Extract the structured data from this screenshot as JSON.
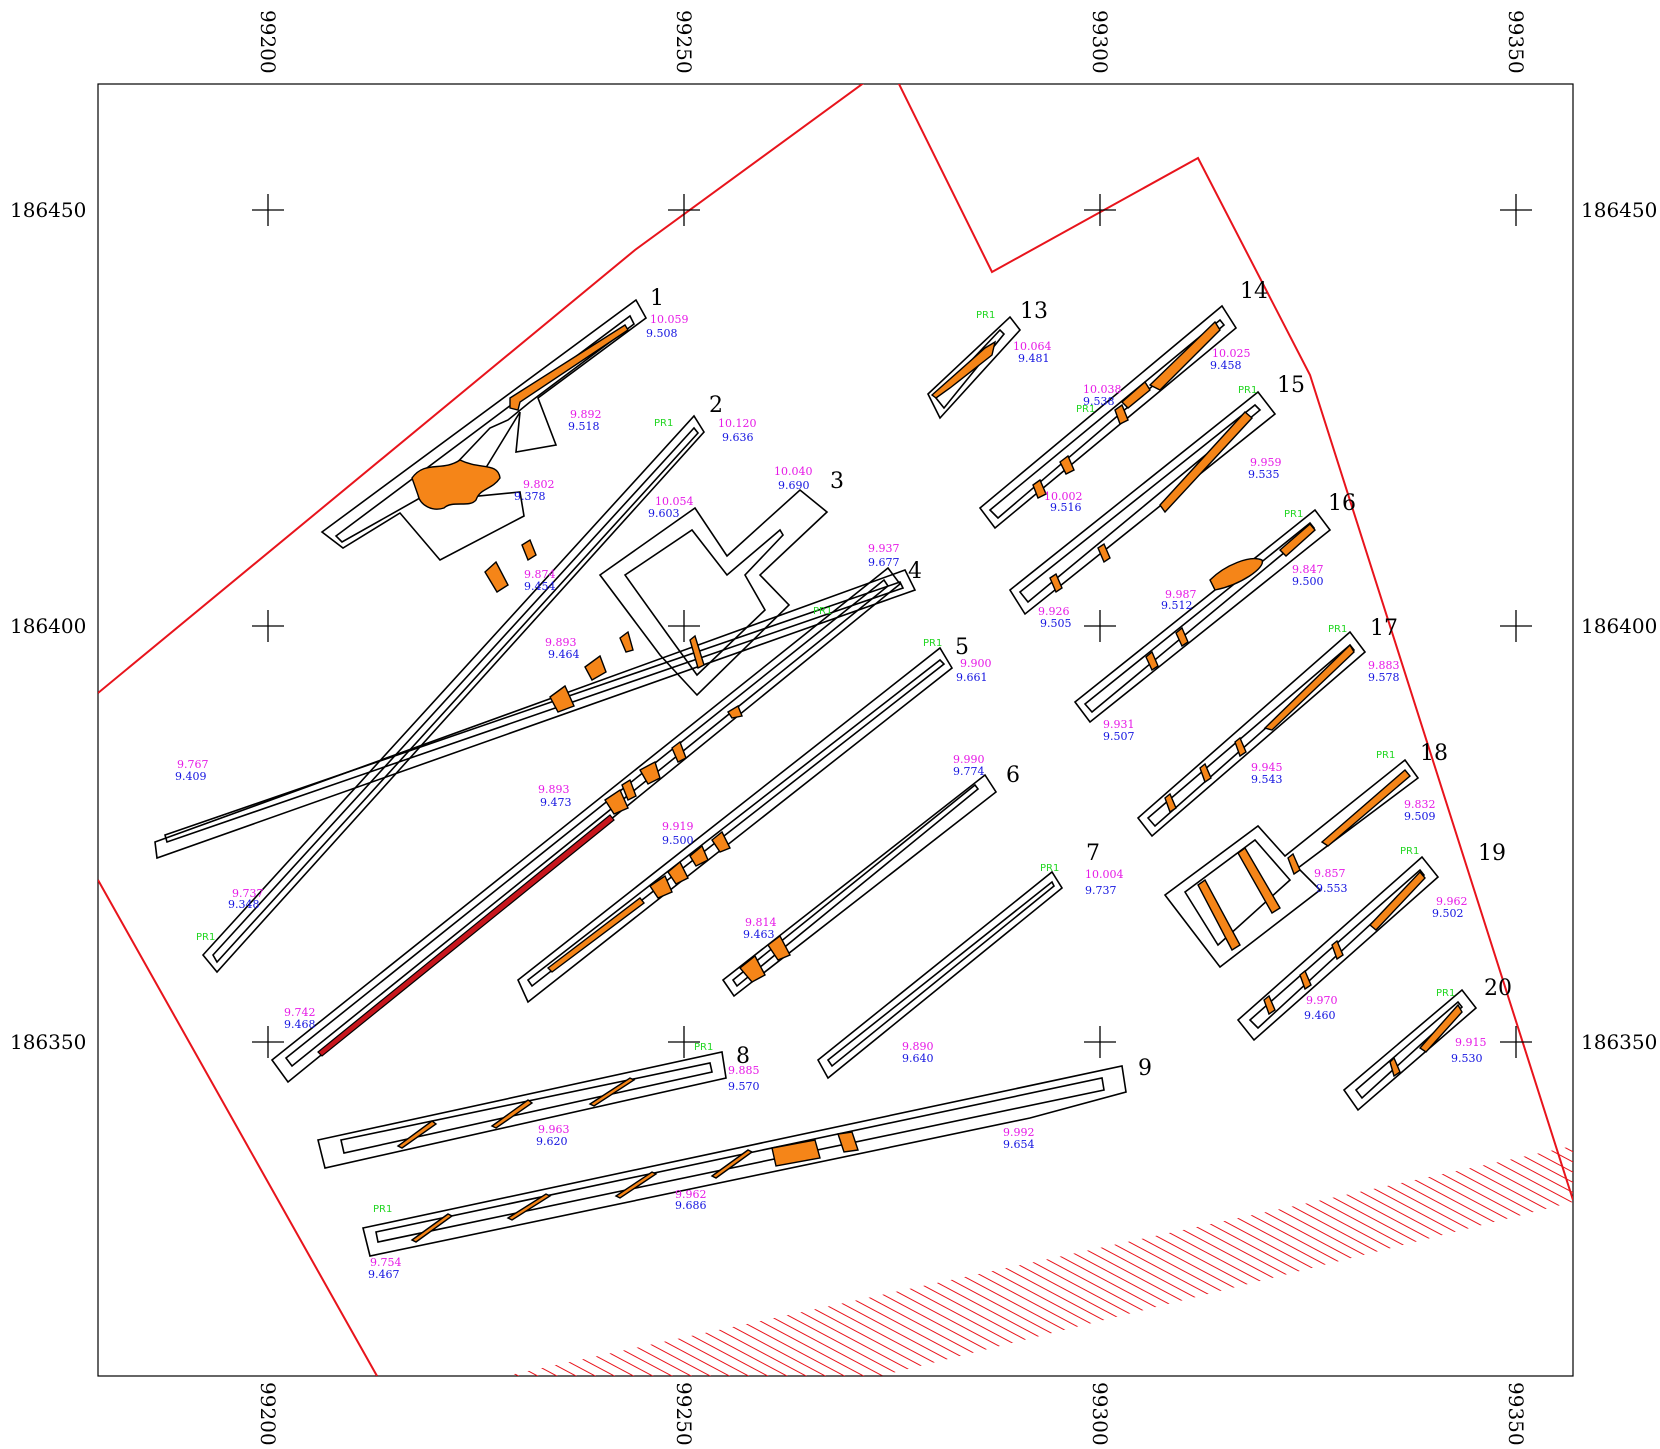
{
  "colors": {
    "boundary": "#e8141c",
    "feature_fill": "#f58518",
    "feature_fill_dark": "#c8161d",
    "level_top": "#e619e6",
    "level_base": "#1414e0",
    "permit_marker": "#22d622",
    "outline": "#000000"
  },
  "grid": {
    "eastings": [
      "99200",
      "99250",
      "99300",
      "99350"
    ],
    "northings": [
      "186450",
      "186400",
      "186350"
    ]
  },
  "trenches": [
    {
      "id": "1",
      "top": "10.059",
      "base": "9.508",
      "pr": "PR1"
    },
    {
      "id": "2",
      "top": "10.120",
      "base": "9.636",
      "pr": "PR1"
    },
    {
      "id": "3",
      "top": "10.040",
      "base": "9.690",
      "pr": ""
    },
    {
      "id": "4",
      "top": "9.937",
      "base": "9.677",
      "pr": "PR1"
    },
    {
      "id": "5",
      "top": "9.900",
      "base": "9.661",
      "pr": "PR1"
    },
    {
      "id": "6",
      "top": "9.990",
      "base": "9.774",
      "pr": ""
    },
    {
      "id": "7",
      "top": "10.004",
      "base": "9.737",
      "pr": "PR1"
    },
    {
      "id": "8",
      "top": "9.885",
      "base": "9.570",
      "pr": "PR1"
    },
    {
      "id": "9",
      "top": "9.992",
      "base": "9.654",
      "pr": "PR1"
    },
    {
      "id": "13",
      "top": "10.064",
      "base": "9.481",
      "pr": "PR1"
    },
    {
      "id": "14",
      "top": "10.025",
      "base": "9.458",
      "pr": ""
    },
    {
      "id": "15",
      "top": "9.959",
      "base": "9.535",
      "pr": "PR1"
    },
    {
      "id": "16",
      "top": "9.847",
      "base": "9.500",
      "pr": "PR1"
    },
    {
      "id": "17",
      "top": "9.883",
      "base": "9.578",
      "pr": "PR1"
    },
    {
      "id": "18",
      "top": "9.832",
      "base": "9.509",
      "pr": "PR1"
    },
    {
      "id": "19",
      "top": "9.962",
      "base": "9.502",
      "pr": "PR1"
    },
    {
      "id": "20",
      "top": "9.915",
      "base": "9.530",
      "pr": "PR1"
    }
  ],
  "levels": [
    {
      "top": "9.892",
      "base": "9.518"
    },
    {
      "top": "9.802",
      "base": "9.378"
    },
    {
      "top": "9.874",
      "base": "9.454"
    },
    {
      "top": "9.767",
      "base": "9.409"
    },
    {
      "top": "10.054",
      "base": "9.603"
    },
    {
      "top": "9.893",
      "base": "9.464"
    },
    {
      "top": "9.893",
      "base": "9.473"
    },
    {
      "top": "9.737",
      "base": "9.348"
    },
    {
      "top": "9.742",
      "base": "9.468"
    },
    {
      "top": "9.919",
      "base": "9.500"
    },
    {
      "top": "9.814",
      "base": "9.463"
    },
    {
      "top": "9.890",
      "base": "9.640"
    },
    {
      "top": "9.963",
      "base": "9.620"
    },
    {
      "top": "9.962",
      "base": "9.686"
    },
    {
      "top": "9.754",
      "base": "9.467"
    },
    {
      "top": "10.038",
      "base": "9.538"
    },
    {
      "top": "10.002",
      "base": "9.516"
    },
    {
      "top": "9.987",
      "base": "9.512"
    },
    {
      "top": "9.926",
      "base": "9.505"
    },
    {
      "top": "9.931",
      "base": "9.507"
    },
    {
      "top": "9.945",
      "base": "9.543"
    },
    {
      "top": "9.857",
      "base": "9.553"
    },
    {
      "top": "9.970",
      "base": "9.460"
    }
  ]
}
